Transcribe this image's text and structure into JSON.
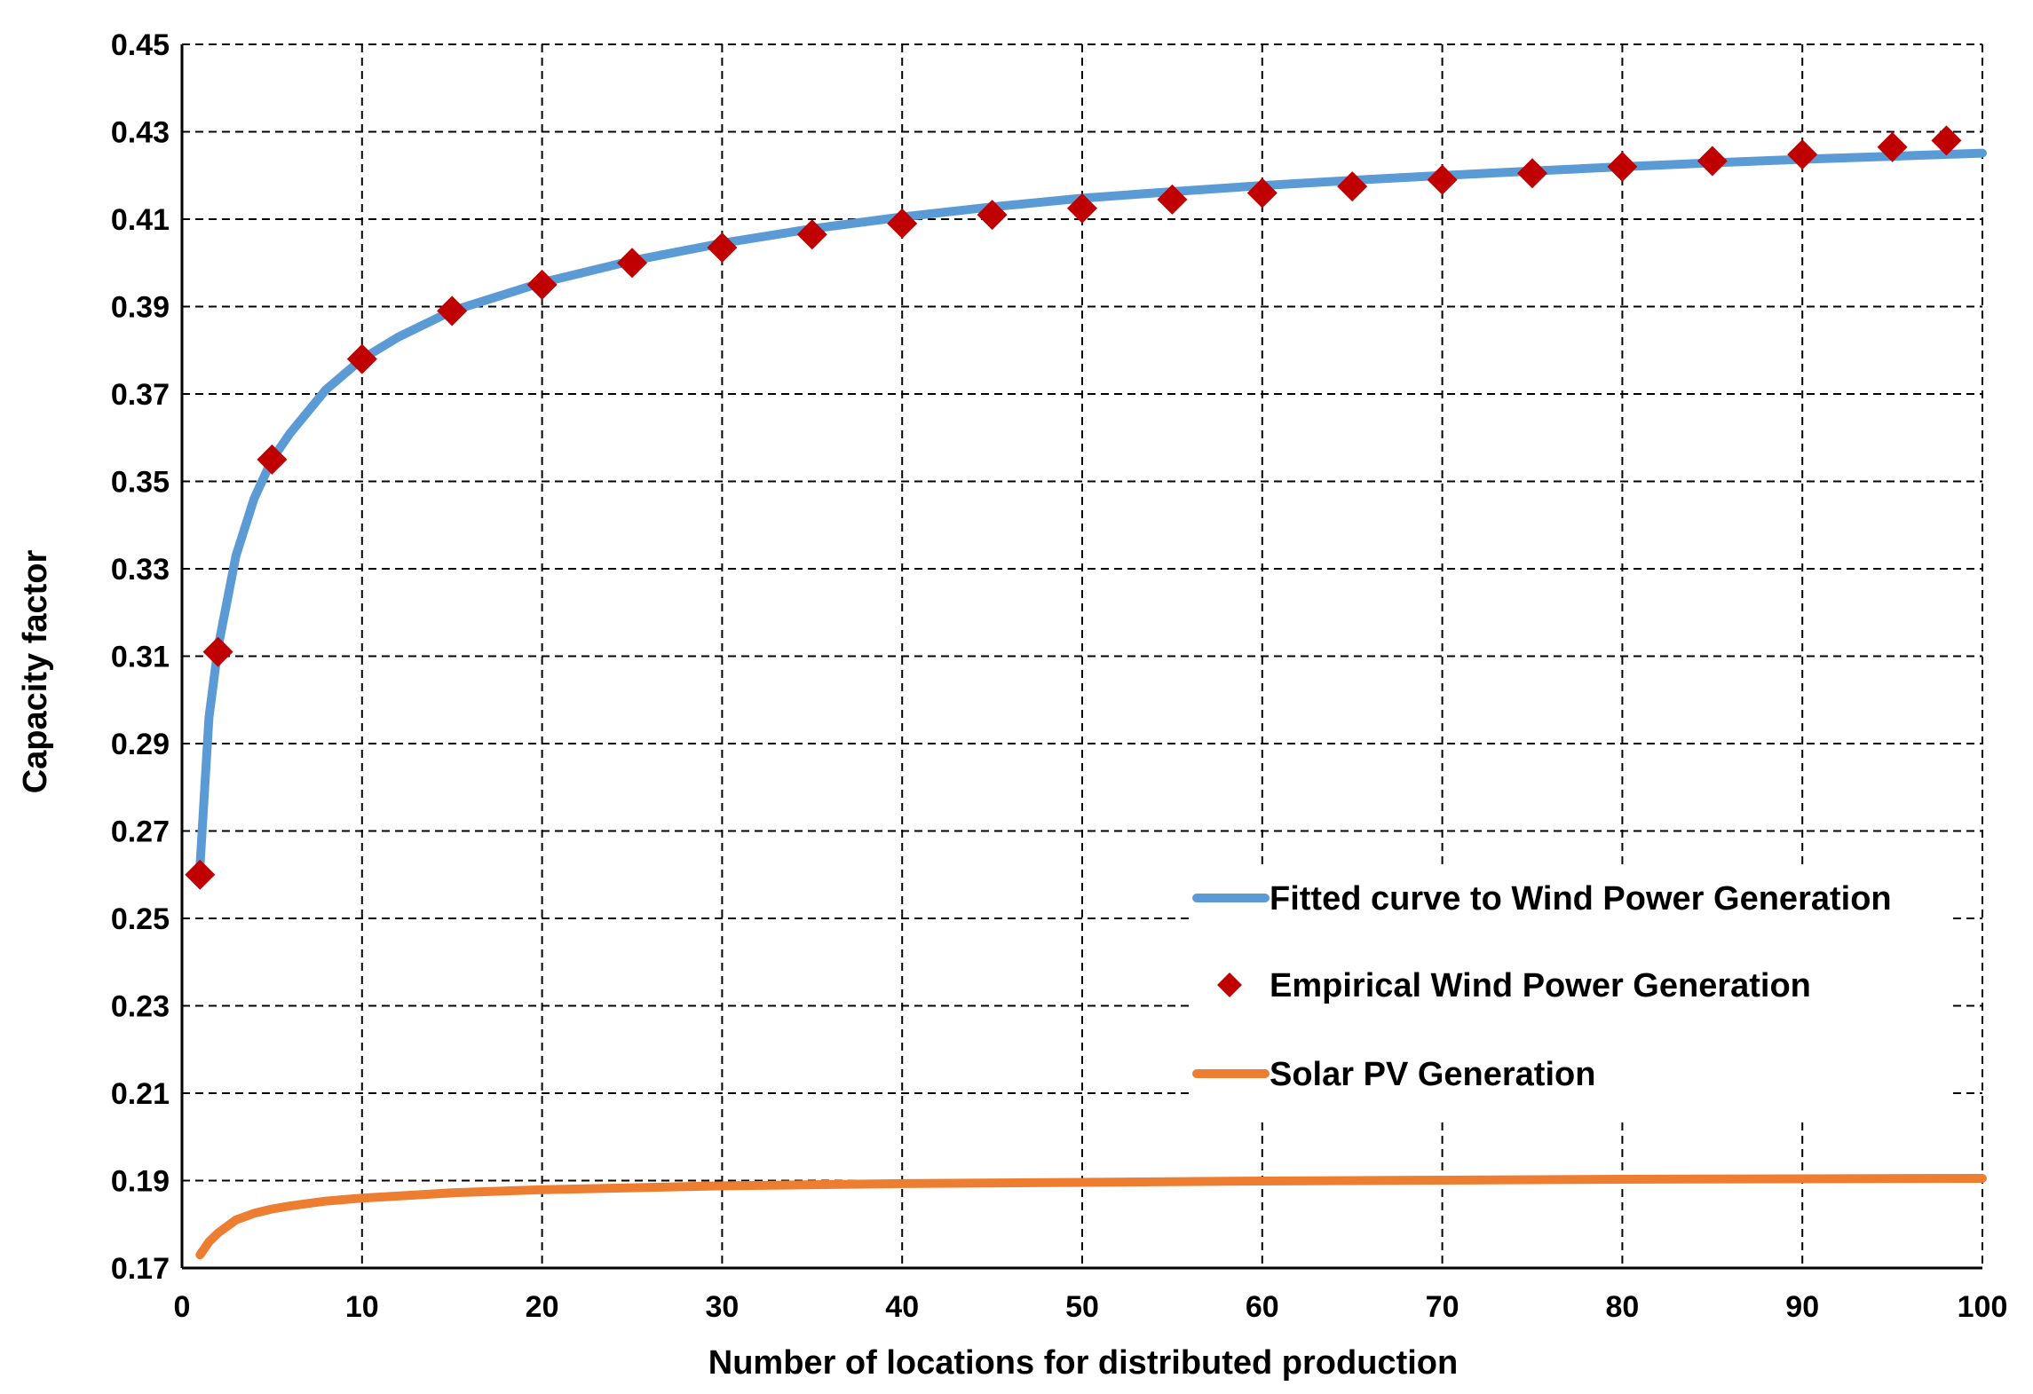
{
  "chart_data": {
    "type": "line",
    "title": "",
    "xlabel": "Number of locations for distributed production",
    "ylabel": "Capacity factor",
    "xlim": [
      0,
      100
    ],
    "ylim": [
      0.17,
      0.45
    ],
    "xticks": [
      0,
      10,
      20,
      30,
      40,
      50,
      60,
      70,
      80,
      90,
      100
    ],
    "yticks": [
      0.17,
      0.19,
      0.21,
      0.23,
      0.25,
      0.27,
      0.29,
      0.31,
      0.33,
      0.35,
      0.37,
      0.39,
      0.41,
      0.43,
      0.45
    ],
    "xtick_labels": [
      "0",
      "10",
      "20",
      "30",
      "40",
      "50",
      "60",
      "70",
      "80",
      "90",
      "100"
    ],
    "ytick_labels": [
      "0.17",
      "0.19",
      "0.21",
      "0.23",
      "0.25",
      "0.27",
      "0.29",
      "0.31",
      "0.33",
      "0.35",
      "0.37",
      "0.39",
      "0.41",
      "0.43",
      "0.45"
    ],
    "grid": true,
    "legend_position": "right",
    "series": [
      {
        "name": "Fitted curve to Wind Power Generation",
        "kind": "line",
        "color": "#5B9BD5",
        "x": [
          1,
          1.5,
          2,
          3,
          4,
          5,
          6,
          8,
          10,
          12,
          15,
          20,
          25,
          30,
          35,
          40,
          45,
          50,
          55,
          60,
          65,
          70,
          75,
          80,
          85,
          90,
          95,
          100
        ],
        "y": [
          0.262,
          0.296,
          0.312,
          0.333,
          0.346,
          0.355,
          0.361,
          0.371,
          0.378,
          0.383,
          0.389,
          0.3955,
          0.4005,
          0.4045,
          0.4078,
          0.4105,
          0.4128,
          0.4148,
          0.4163,
          0.4177,
          0.4189,
          0.42,
          0.421,
          0.422,
          0.4229,
          0.4237,
          0.4244,
          0.4251
        ]
      },
      {
        "name": "Empirical Wind Power Generation",
        "kind": "scatter",
        "color": "#C00000",
        "x": [
          1,
          2,
          5,
          10,
          15,
          20,
          25,
          30,
          35,
          40,
          45,
          50,
          55,
          60,
          65,
          70,
          75,
          80,
          85,
          90,
          95,
          98
        ],
        "y": [
          0.26,
          0.311,
          0.355,
          0.378,
          0.389,
          0.395,
          0.4,
          0.4035,
          0.4065,
          0.409,
          0.411,
          0.4125,
          0.4145,
          0.416,
          0.4175,
          0.419,
          0.4205,
          0.422,
          0.4233,
          0.4248,
          0.4265,
          0.428
        ]
      },
      {
        "name": "Solar PV Generation",
        "kind": "line",
        "color": "#ED7D31",
        "x": [
          1,
          1.5,
          2,
          3,
          4,
          5,
          6,
          8,
          10,
          15,
          20,
          30,
          40,
          50,
          60,
          70,
          80,
          90,
          100
        ],
        "y": [
          0.173,
          0.176,
          0.178,
          0.181,
          0.1825,
          0.1835,
          0.1842,
          0.1853,
          0.186,
          0.1872,
          0.1879,
          0.1888,
          0.1893,
          0.1896,
          0.1899,
          0.1901,
          0.1903,
          0.1904,
          0.1905
        ]
      }
    ]
  }
}
